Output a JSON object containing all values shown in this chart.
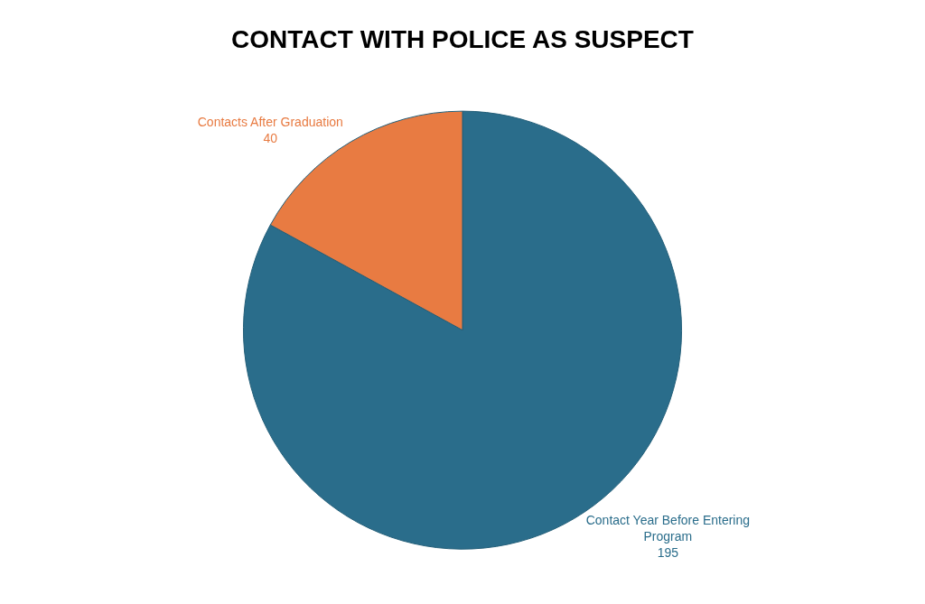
{
  "chart_data": {
    "type": "pie",
    "title": "CONTACT WITH POLICE AS SUSPECT",
    "categories": [
      "Contact Year Before Entering Program",
      "Contacts After Graduation"
    ],
    "values": [
      195,
      40
    ],
    "colors": [
      "#2a6d8b",
      "#e87b42"
    ],
    "data_labels": true,
    "legend": false
  }
}
